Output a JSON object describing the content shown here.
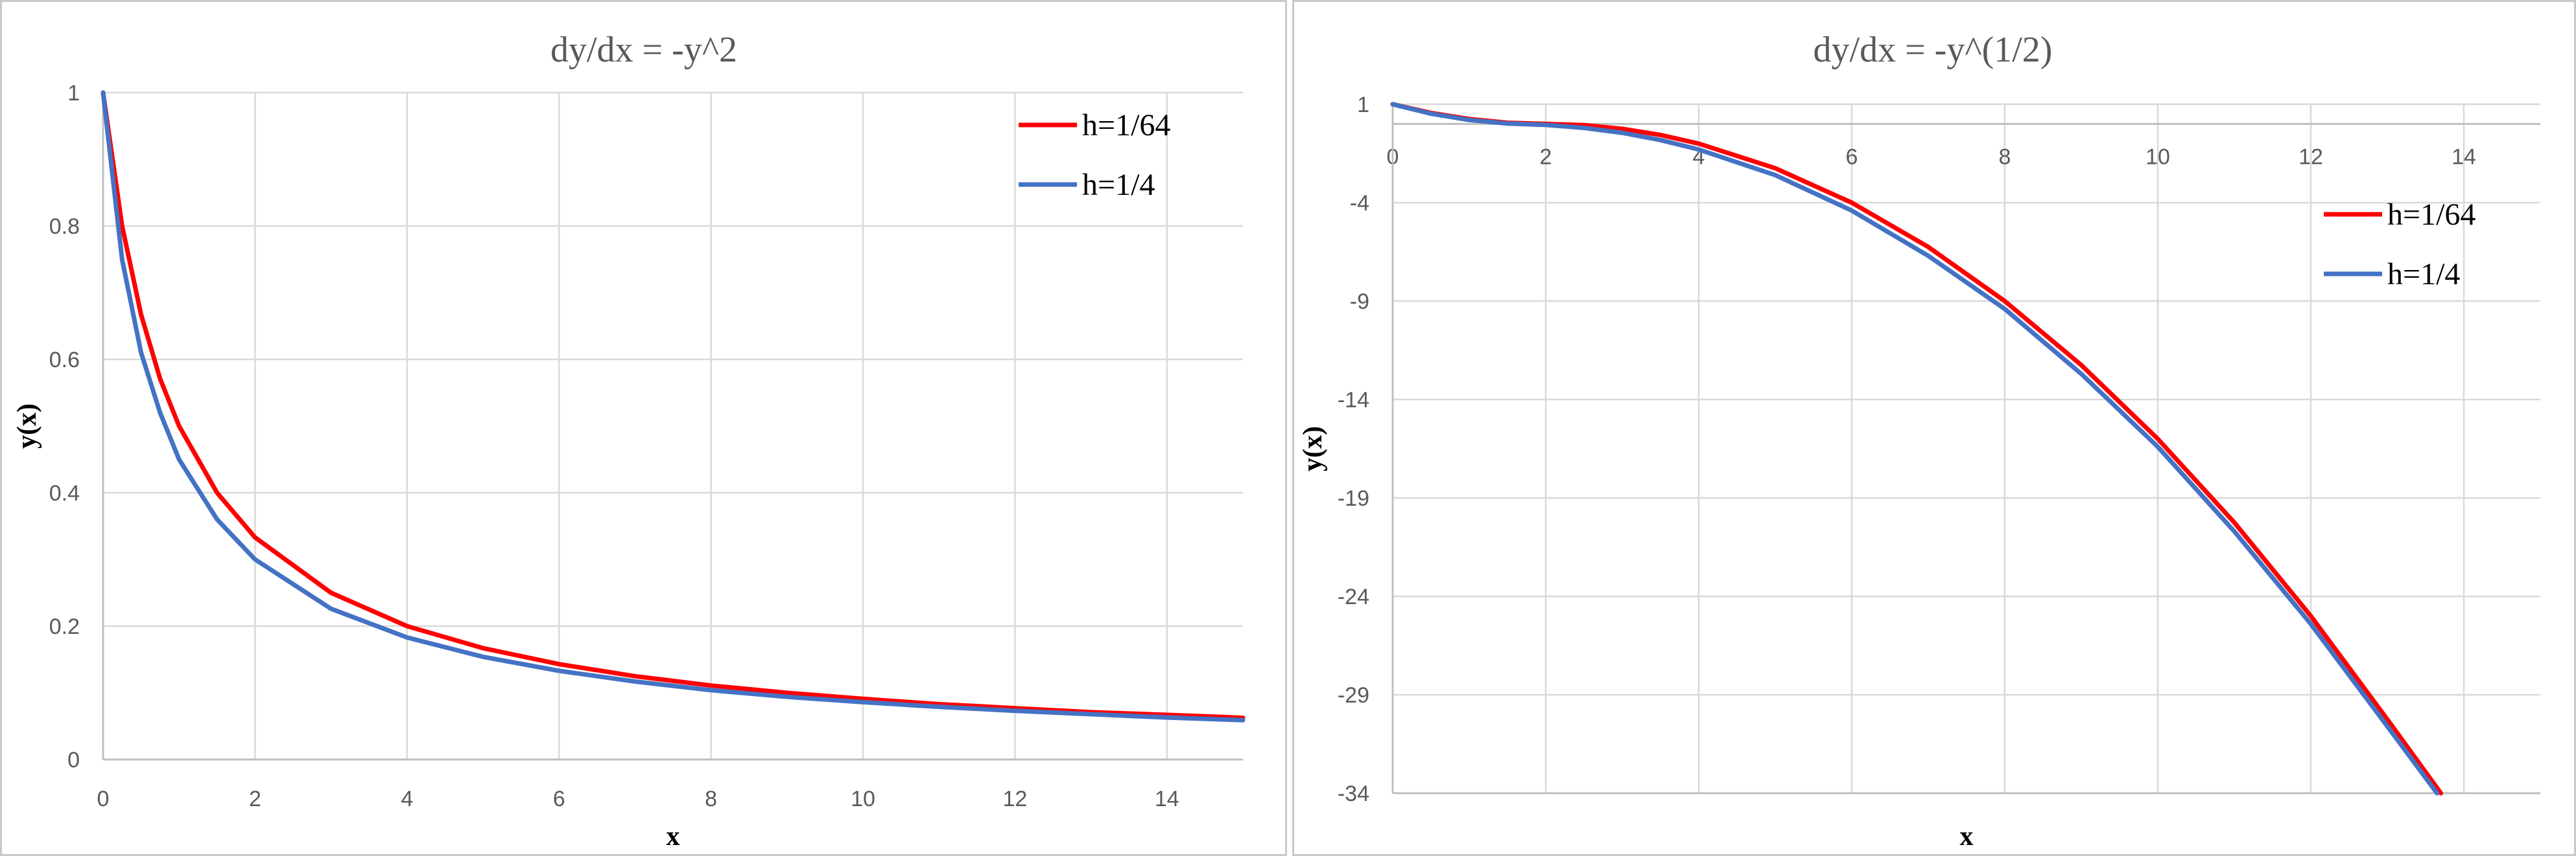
{
  "chart_data": [
    {
      "type": "line",
      "title": "dy/dx = -y^2",
      "xlabel": "x",
      "ylabel": "y(x)",
      "xlim": [
        0,
        15
      ],
      "ylim": [
        0,
        1
      ],
      "x_ticks": [
        0,
        2,
        4,
        6,
        8,
        10,
        12,
        14
      ],
      "y_ticks": [
        0,
        0.2,
        0.4,
        0.6,
        0.8,
        1
      ],
      "grid": true,
      "legend_position": "top-right",
      "series": [
        {
          "name": "h=1/64",
          "color": "#ff0000",
          "x": [
            0,
            0.25,
            0.5,
            0.75,
            1,
            1.5,
            2,
            3,
            4,
            5,
            6,
            7,
            8,
            9,
            10,
            11,
            12,
            13,
            14,
            15
          ],
          "y": [
            1,
            0.8,
            0.667,
            0.571,
            0.5,
            0.4,
            0.333,
            0.25,
            0.2,
            0.167,
            0.143,
            0.125,
            0.111,
            0.1,
            0.091,
            0.083,
            0.077,
            0.071,
            0.067,
            0.0625
          ]
        },
        {
          "name": "h=1/4",
          "color": "#4472c4",
          "x": [
            0,
            0.25,
            0.5,
            0.75,
            1,
            1.5,
            2,
            3,
            4,
            5,
            6,
            7,
            8,
            9,
            10,
            11,
            12,
            13,
            14,
            15
          ],
          "y": [
            1,
            0.75,
            0.61,
            0.52,
            0.45,
            0.36,
            0.3,
            0.226,
            0.183,
            0.154,
            0.133,
            0.117,
            0.104,
            0.094,
            0.086,
            0.079,
            0.073,
            0.068,
            0.063,
            0.059
          ]
        }
      ]
    },
    {
      "type": "line",
      "title": "dy/dx = -y^(1/2)",
      "xlabel": "x",
      "ylabel": "y(x)",
      "xlim": [
        0,
        15
      ],
      "ylim": [
        -34,
        1
      ],
      "x_ticks": [
        0,
        2,
        4,
        6,
        8,
        10,
        12,
        14
      ],
      "y_ticks": [
        1,
        -4,
        -9,
        -14,
        -19,
        -24,
        -29,
        -34
      ],
      "grid": true,
      "legend_position": "top-right",
      "series": [
        {
          "name": "h=1/64",
          "color": "#ff0000",
          "x": [
            0,
            0.5,
            1,
            1.5,
            2,
            2.5,
            3,
            3.5,
            4,
            5,
            6,
            7,
            8,
            9,
            10,
            11,
            12,
            13,
            13.7
          ],
          "y": [
            1,
            0.56,
            0.25,
            0.06,
            0,
            -0.06,
            -0.25,
            -0.56,
            -1.0,
            -2.25,
            -4.0,
            -6.25,
            -9.0,
            -12.25,
            -16.0,
            -20.25,
            -25.0,
            -30.25,
            -34.0
          ]
        },
        {
          "name": "h=1/4",
          "color": "#4472c4",
          "x": [
            0,
            0.5,
            1,
            1.5,
            2,
            2.5,
            3,
            3.5,
            4,
            5,
            6,
            7,
            8,
            9,
            10,
            11,
            12,
            13,
            13.65
          ],
          "y": [
            1,
            0.52,
            0.2,
            0.02,
            -0.05,
            -0.2,
            -0.45,
            -0.82,
            -1.3,
            -2.6,
            -4.4,
            -6.7,
            -9.4,
            -12.7,
            -16.4,
            -20.7,
            -25.4,
            -30.6,
            -34.0
          ]
        }
      ]
    }
  ]
}
